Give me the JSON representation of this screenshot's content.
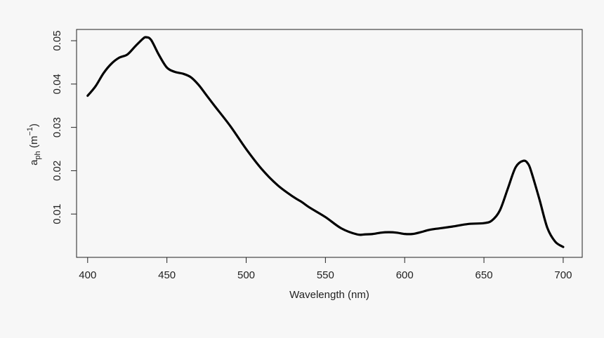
{
  "chart_data": {
    "type": "line",
    "title": "",
    "xlabel": "Wavelength (nm)",
    "ylabel": {
      "base": "a",
      "subscript": "ph",
      "unit_open": " (m",
      "unit_exponent": "−1",
      "unit_close": ")"
    },
    "xlim": [
      393,
      712
    ],
    "ylim": [
      0.0,
      0.0526
    ],
    "x_ticks": [
      400,
      450,
      500,
      550,
      600,
      650,
      700
    ],
    "x_tick_labels": [
      "400",
      "450",
      "500",
      "550",
      "600",
      "650",
      "700"
    ],
    "y_ticks": [
      0.01,
      0.02,
      0.03,
      0.04,
      0.05
    ],
    "y_tick_labels": [
      "0.01",
      "0.02",
      "0.03",
      "0.04",
      "0.05"
    ],
    "grid": false,
    "series": [
      {
        "name": "aph",
        "color": "#000000",
        "x": [
          400,
          405,
          410,
          415,
          420,
          425,
          430,
          435,
          437,
          440,
          445,
          450,
          455,
          460,
          465,
          470,
          475,
          480,
          490,
          500,
          510,
          520,
          530,
          535,
          540,
          550,
          560,
          570,
          575,
          580,
          585,
          590,
          595,
          600,
          605,
          610,
          615,
          620,
          630,
          640,
          650,
          655,
          660,
          665,
          670,
          675,
          678,
          680,
          685,
          690,
          695,
          700
        ],
        "y": [
          0.0373,
          0.0395,
          0.0425,
          0.0447,
          0.0461,
          0.0468,
          0.0487,
          0.0505,
          0.0508,
          0.0502,
          0.0467,
          0.0438,
          0.0428,
          0.0424,
          0.0416,
          0.0398,
          0.0374,
          0.035,
          0.0303,
          0.025,
          0.0203,
          0.0166,
          0.0139,
          0.0128,
          0.0115,
          0.0093,
          0.0067,
          0.0053,
          0.0053,
          0.0054,
          0.0057,
          0.0058,
          0.0057,
          0.0054,
          0.0054,
          0.0058,
          0.0063,
          0.0066,
          0.0071,
          0.0077,
          0.0079,
          0.0085,
          0.0108,
          0.0158,
          0.0208,
          0.0223,
          0.0215,
          0.0196,
          0.0134,
          0.0068,
          0.0036,
          0.0024
        ]
      }
    ]
  }
}
